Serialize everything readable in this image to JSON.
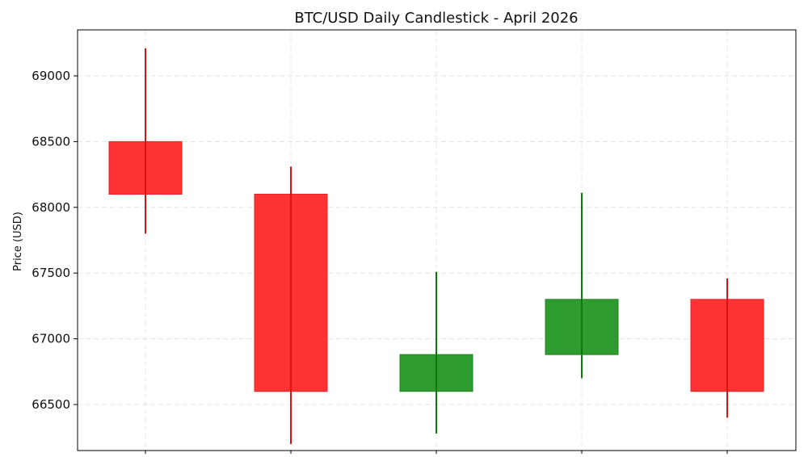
{
  "chart_data": {
    "type": "candlestick",
    "title": "BTC/USD Daily Candlestick - April 2026",
    "xlabel": "",
    "ylabel": "Price (USD)",
    "ylim": [
      66150,
      69350
    ],
    "yticks": [
      66500,
      67000,
      67500,
      68000,
      68500,
      69000
    ],
    "grid": true,
    "colors": {
      "up": "#2e9b2e",
      "down": "#ff3333",
      "up_wick": "#0a7a0a",
      "down_wick": "#dd1111"
    },
    "candles": [
      {
        "open": 68500,
        "high": 69210,
        "low": 67800,
        "close": 68100
      },
      {
        "open": 68100,
        "high": 68310,
        "low": 66200,
        "close": 66600
      },
      {
        "open": 66600,
        "high": 67510,
        "low": 66280,
        "close": 66880
      },
      {
        "open": 66880,
        "high": 68110,
        "low": 66700,
        "close": 67300
      },
      {
        "open": 67300,
        "high": 67460,
        "low": 66400,
        "close": 66600
      }
    ]
  }
}
